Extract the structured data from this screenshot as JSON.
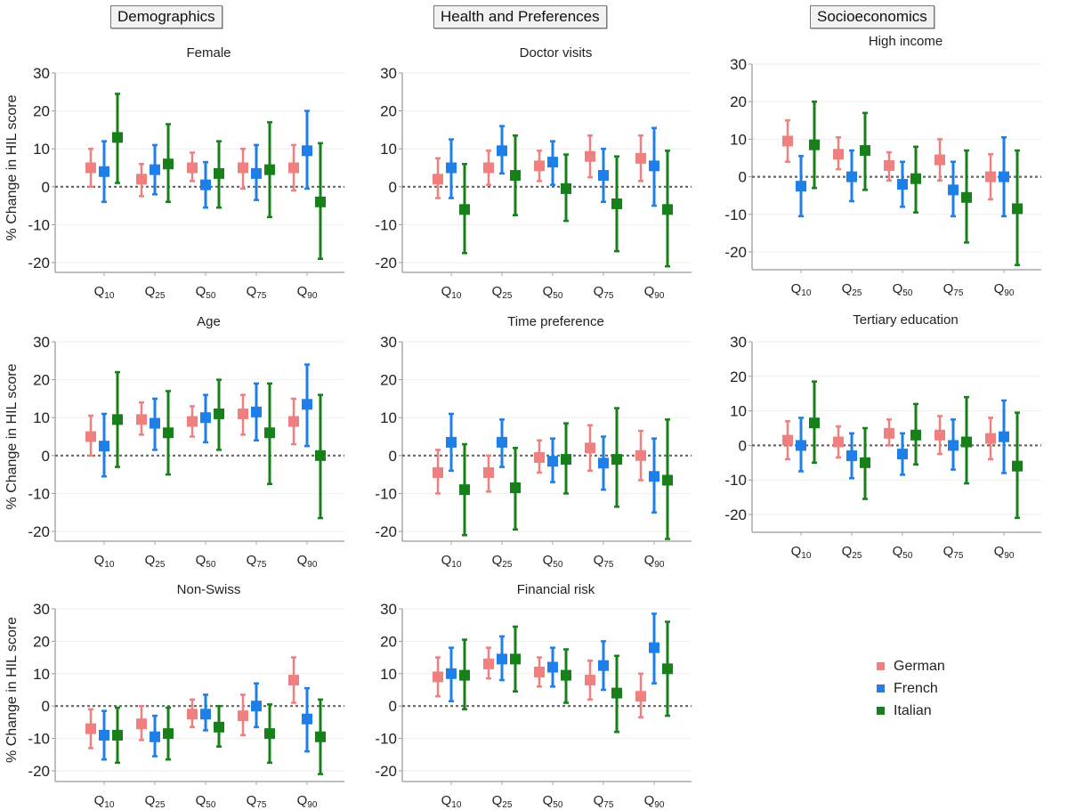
{
  "section_headers": [
    "Demographics",
    "Health and Preferences",
    "Socioeconomics"
  ],
  "y_axis_label": "% Change in HIL score",
  "legend": [
    {
      "name": "German",
      "color": "#f08080"
    },
    {
      "name": "French",
      "color": "#1e7fe8"
    },
    {
      "name": "Italian",
      "color": "#17801a"
    }
  ],
  "chart_data": {
    "type": "scatter",
    "subtype": "point estimates with confidence intervals (error bars), small multiples",
    "categories": [
      "Q10",
      "Q25",
      "Q50",
      "Q75",
      "Q90"
    ],
    "series_names": [
      "German",
      "French",
      "Italian"
    ],
    "ylim": [
      -20,
      30
    ],
    "yticks": [
      -20,
      -10,
      0,
      10,
      20,
      30
    ],
    "ylabel": "% Change in HIL score",
    "reference_line": 0,
    "grid": true,
    "legend_position": "bottom-right",
    "panels": [
      {
        "title": "Female",
        "group": "Demographics",
        "show_ylabel": true,
        "series": [
          {
            "name": "German",
            "est": [
              5,
              2,
              5,
              5,
              5
            ],
            "lo": [
              0,
              -2.5,
              1.5,
              -0.5,
              -1
            ],
            "hi": [
              10,
              6,
              9,
              10,
              11
            ]
          },
          {
            "name": "French",
            "est": [
              4,
              4.5,
              0.5,
              3.5,
              9.5
            ],
            "lo": [
              -4,
              -2,
              -5.5,
              -3.5,
              -0.5
            ],
            "hi": [
              12,
              11,
              6.5,
              11,
              20
            ]
          },
          {
            "name": "Italian",
            "est": [
              13,
              6,
              3.5,
              4.5,
              -4
            ],
            "lo": [
              1,
              -4,
              -5.5,
              -8,
              -19
            ],
            "hi": [
              24.5,
              16.5,
              12,
              17,
              11.5
            ]
          }
        ]
      },
      {
        "title": "Doctor visits",
        "group": "Health and Preferences",
        "show_ylabel": false,
        "series": [
          {
            "name": "German",
            "est": [
              2,
              5,
              5.5,
              8,
              7.5
            ],
            "lo": [
              -3,
              0.5,
              1.5,
              2.5,
              1.5
            ],
            "hi": [
              7.5,
              9.5,
              9.5,
              13.5,
              13.5
            ]
          },
          {
            "name": "French",
            "est": [
              5,
              9.5,
              6.5,
              3,
              5.5
            ],
            "lo": [
              -3,
              3.5,
              0.5,
              -4,
              -5
            ],
            "hi": [
              12.5,
              16,
              12,
              10,
              15.5
            ]
          },
          {
            "name": "Italian",
            "est": [
              -6,
              3,
              -0.5,
              -4.5,
              -6
            ],
            "lo": [
              -17.5,
              -7.5,
              -9,
              -17,
              -21
            ],
            "hi": [
              6,
              13.5,
              8.5,
              8,
              9.5
            ]
          }
        ]
      },
      {
        "title": "High income",
        "group": "Socioeconomics",
        "show_ylabel": false,
        "series": [
          {
            "name": "German",
            "est": [
              9.5,
              6,
              3,
              4.5,
              0
            ],
            "lo": [
              4,
              2,
              -1,
              -1,
              -6
            ],
            "hi": [
              15,
              10.5,
              6.5,
              10,
              6
            ]
          },
          {
            "name": "French",
            "est": [
              -2.5,
              0,
              -2,
              -3.5,
              0
            ],
            "lo": [
              -10.5,
              -6.5,
              -8,
              -10.5,
              -10.5
            ],
            "hi": [
              5.5,
              7,
              4,
              4,
              10.5
            ]
          },
          {
            "name": "Italian",
            "est": [
              8.5,
              7,
              -0.5,
              -5.5,
              -8.5
            ],
            "lo": [
              -3,
              -3.5,
              -9.5,
              -17.5,
              -23.5
            ],
            "hi": [
              20,
              17,
              8,
              7,
              7
            ]
          }
        ]
      },
      {
        "title": "Age",
        "group": "Demographics",
        "show_ylabel": true,
        "series": [
          {
            "name": "German",
            "est": [
              5,
              9.5,
              9,
              11,
              9
            ],
            "lo": [
              0,
              5.5,
              5,
              5.5,
              3
            ],
            "hi": [
              10.5,
              14,
              13,
              16,
              15
            ]
          },
          {
            "name": "French",
            "est": [
              2.5,
              8.5,
              10,
              11.5,
              13.5
            ],
            "lo": [
              -5.5,
              1.5,
              3.5,
              4,
              2.5
            ],
            "hi": [
              11,
              15,
              16,
              19,
              24
            ]
          },
          {
            "name": "Italian",
            "est": [
              9.5,
              6,
              11,
              6,
              0
            ],
            "lo": [
              -3,
              -5,
              1.5,
              -7.5,
              -16.5
            ],
            "hi": [
              22,
              17,
              20,
              19,
              16
            ]
          }
        ]
      },
      {
        "title": "Time preference",
        "group": "Health and Preferences",
        "show_ylabel": false,
        "series": [
          {
            "name": "German",
            "est": [
              -4.5,
              -4.5,
              -0.5,
              2,
              0
            ],
            "lo": [
              -10,
              -9.5,
              -4.5,
              -4,
              -6.5
            ],
            "hi": [
              1.5,
              0,
              4,
              8,
              6.5
            ]
          },
          {
            "name": "French",
            "est": [
              3.5,
              3.5,
              -1.5,
              -2,
              -5.5
            ],
            "lo": [
              -4,
              -3,
              -7,
              -9,
              -15
            ],
            "hi": [
              11,
              9.5,
              4.5,
              5,
              4.5
            ]
          },
          {
            "name": "Italian",
            "est": [
              -9,
              -8.5,
              -1,
              -1,
              -6.5
            ],
            "lo": [
              -21,
              -19.5,
              -10,
              -13.5,
              -22
            ],
            "hi": [
              3,
              2,
              8.5,
              12.5,
              9.5
            ]
          }
        ]
      },
      {
        "title": "Tertiary education",
        "group": "Socioeconomics",
        "show_ylabel": false,
        "series": [
          {
            "name": "German",
            "est": [
              1.5,
              1,
              3.5,
              3,
              2
            ],
            "lo": [
              -4,
              -3.5,
              0,
              -2.5,
              -4
            ],
            "hi": [
              7,
              5.5,
              7.5,
              8.5,
              8
            ]
          },
          {
            "name": "French",
            "est": [
              0,
              -3,
              -2.5,
              0,
              2.5
            ],
            "lo": [
              -7.5,
              -9.5,
              -8.5,
              -7,
              -8
            ],
            "hi": [
              8,
              3.5,
              3.5,
              7.5,
              13
            ]
          },
          {
            "name": "Italian",
            "est": [
              6.5,
              -5,
              3,
              1,
              -6
            ],
            "lo": [
              -5,
              -15.5,
              -5.5,
              -11,
              -21
            ],
            "hi": [
              18.5,
              5,
              12,
              14,
              9.5
            ]
          }
        ]
      },
      {
        "title": "Non-Swiss",
        "group": "Demographics",
        "show_ylabel": true,
        "series": [
          {
            "name": "German",
            "est": [
              -7,
              -5.5,
              -2.5,
              -3,
              8
            ],
            "lo": [
              -13,
              -10.5,
              -6.5,
              -9,
              1
            ],
            "hi": [
              -1,
              0,
              2,
              3.5,
              15
            ]
          },
          {
            "name": "French",
            "est": [
              -9,
              -9.5,
              -2.5,
              0,
              -4
            ],
            "lo": [
              -16.5,
              -15.5,
              -7.5,
              -6.5,
              -14
            ],
            "hi": [
              -1.5,
              -3,
              3.5,
              7,
              5.5
            ]
          },
          {
            "name": "Italian",
            "est": [
              -9,
              -8.5,
              -6.5,
              -8.5,
              -9.5
            ],
            "lo": [
              -17.5,
              -16.5,
              -12.5,
              -17.5,
              -21
            ],
            "hi": [
              -0.5,
              -0.5,
              0,
              0.5,
              2
            ]
          }
        ]
      },
      {
        "title": "Financial risk",
        "group": "Health and Preferences",
        "show_ylabel": false,
        "series": [
          {
            "name": "German",
            "est": [
              9,
              13,
              10.5,
              8,
              3
            ],
            "lo": [
              3,
              8.5,
              6,
              2,
              -3.5
            ],
            "hi": [
              15,
              18,
              15,
              14,
              10
            ]
          },
          {
            "name": "French",
            "est": [
              10,
              14.5,
              12,
              12.5,
              18
            ],
            "lo": [
              1.5,
              8,
              6,
              5,
              7
            ],
            "hi": [
              18,
              21.5,
              18,
              20,
              28.5
            ]
          },
          {
            "name": "Italian",
            "est": [
              9.5,
              14.5,
              9.5,
              4,
              11.5
            ],
            "lo": [
              -1,
              4.5,
              1,
              -8,
              -3
            ],
            "hi": [
              20.5,
              24.5,
              17.5,
              15.5,
              26
            ]
          }
        ]
      }
    ]
  }
}
